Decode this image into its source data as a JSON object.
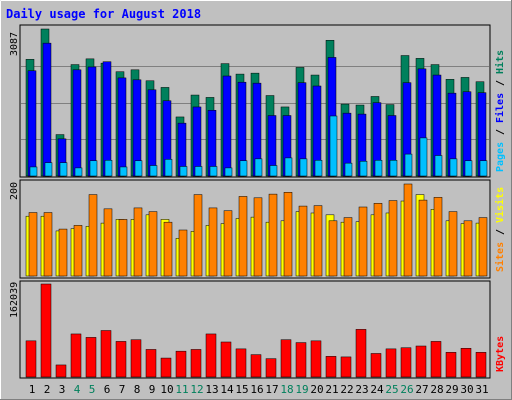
{
  "title": "Daily usage for August 2018",
  "colors": {
    "background": "#c0c0c0",
    "title": "#0000ff",
    "hits": "#00805c",
    "files": "#0000ff",
    "pages": "#00c0ff",
    "sites": "#ff8000",
    "visits": "#ffff00",
    "kbytes": "#ff0000",
    "weekend_label": "#00805c",
    "weekday_label": "#000000"
  },
  "chart_data": [
    {
      "type": "bar",
      "name": "hits-files-pages",
      "ymax_label": "3087",
      "ylim": [
        0,
        3087
      ],
      "grid": true,
      "right_labels": [
        "Pages",
        "Files",
        "Hits"
      ],
      "categories": [
        "1",
        "2",
        "3",
        "4",
        "5",
        "6",
        "7",
        "8",
        "9",
        "10",
        "11",
        "12",
        "13",
        "14",
        "15",
        "16",
        "17",
        "18",
        "19",
        "20",
        "21",
        "22",
        "23",
        "24",
        "25",
        "26",
        "27",
        "28",
        "29",
        "30",
        "31"
      ],
      "weekend_days": [
        "4",
        "5",
        "11",
        "12",
        "18",
        "19",
        "25",
        "26"
      ],
      "series": [
        {
          "name": "Hits",
          "values": [
            2450,
            3087,
            870,
            2340,
            2460,
            2370,
            2190,
            2230,
            2000,
            1860,
            1240,
            1700,
            1650,
            2360,
            2140,
            2160,
            1690,
            1450,
            2280,
            2120,
            2850,
            1510,
            1490,
            1670,
            1500,
            2530,
            2470,
            2340,
            2030,
            2070,
            1980
          ]
        },
        {
          "name": "Files",
          "values": [
            2210,
            2790,
            780,
            2230,
            2290,
            2400,
            2060,
            2020,
            1810,
            1580,
            1110,
            1450,
            1380,
            2100,
            1970,
            1950,
            1270,
            1270,
            1960,
            1890,
            2490,
            1320,
            1300,
            1540,
            1270,
            1960,
            2250,
            2120,
            1740,
            1770,
            1750
          ]
        },
        {
          "name": "Pages",
          "values": [
            190,
            280,
            280,
            170,
            320,
            330,
            190,
            320,
            220,
            350,
            200,
            200,
            200,
            170,
            320,
            360,
            220,
            380,
            360,
            330,
            1260,
            270,
            310,
            330,
            330,
            460,
            800,
            430,
            360,
            320,
            320
          ]
        }
      ]
    },
    {
      "type": "bar",
      "name": "sites-visits",
      "ymax_label": "200",
      "ylim": [
        0,
        200
      ],
      "right_labels": [
        "Sites",
        "Visits"
      ],
      "categories": [
        "1",
        "2",
        "3",
        "4",
        "5",
        "6",
        "7",
        "8",
        "9",
        "10",
        "11",
        "12",
        "13",
        "14",
        "15",
        "16",
        "17",
        "18",
        "19",
        "20",
        "21",
        "22",
        "23",
        "24",
        "25",
        "26",
        "27",
        "28",
        "29",
        "30",
        "31"
      ],
      "series": [
        {
          "name": "Visits",
          "values": [
            130,
            130,
            98,
            103,
            108,
            115,
            123,
            123,
            133,
            123,
            82,
            97,
            110,
            114,
            125,
            128,
            117,
            120,
            140,
            137,
            133,
            117,
            118,
            133,
            137,
            163,
            177,
            145,
            120,
            114,
            115
          ]
        },
        {
          "name": "Sites",
          "values": [
            138,
            138,
            102,
            110,
            177,
            146,
            123,
            148,
            140,
            117,
            100,
            177,
            148,
            142,
            173,
            170,
            178,
            182,
            152,
            153,
            120,
            127,
            150,
            158,
            164,
            200,
            165,
            171,
            140,
            120,
            127
          ]
        }
      ]
    },
    {
      "type": "bar",
      "name": "kbytes",
      "ymax_label": "162039",
      "ylim": [
        0,
        162039
      ],
      "right_labels": [
        "KBytes"
      ],
      "categories": [
        "1",
        "2",
        "3",
        "4",
        "5",
        "6",
        "7",
        "8",
        "9",
        "10",
        "11",
        "12",
        "13",
        "14",
        "15",
        "16",
        "17",
        "18",
        "19",
        "20",
        "21",
        "22",
        "23",
        "24",
        "25",
        "26",
        "27",
        "28",
        "29",
        "30",
        "31"
      ],
      "series": [
        {
          "name": "KBytes",
          "values": [
            63000,
            162039,
            21000,
            75000,
            69000,
            81000,
            62000,
            65000,
            48000,
            33000,
            45000,
            48000,
            75000,
            61000,
            49000,
            39000,
            32000,
            65000,
            60000,
            63000,
            36000,
            35000,
            83000,
            41000,
            49000,
            51000,
            54000,
            62000,
            43000,
            50000,
            43000
          ]
        }
      ]
    }
  ]
}
